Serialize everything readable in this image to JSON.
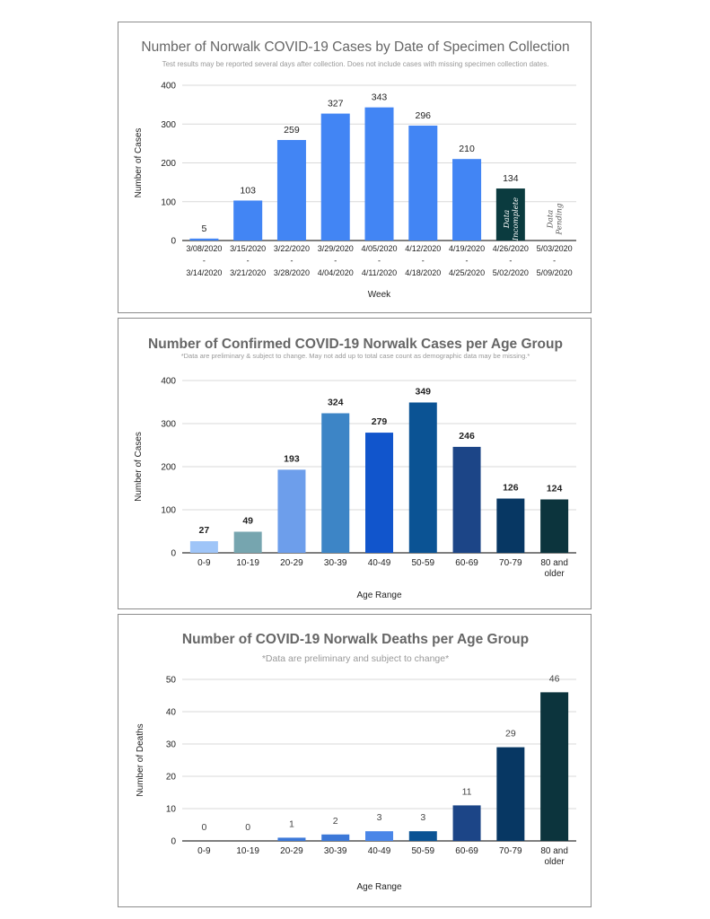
{
  "chart_data": [
    {
      "type": "bar",
      "title": "Number of Norwalk COVID-19 Cases by Date of Specimen Collection",
      "subtitle": "Test results may be reported several days after collection. Does not include cases with missing specimen collection dates.",
      "xlabel": "Week",
      "ylabel": "Number of Cases",
      "ylim": [
        0,
        400
      ],
      "yticks": [
        "0",
        "100",
        "200",
        "300",
        "400"
      ],
      "categories": [
        [
          "3/08/2020",
          "-",
          "3/14/2020"
        ],
        [
          "3/15/2020",
          "-",
          "3/21/2020"
        ],
        [
          "3/22/2020",
          "-",
          "3/28/2020"
        ],
        [
          "3/29/2020",
          "-",
          "4/04/2020"
        ],
        [
          "4/05/2020",
          "-",
          "4/11/2020"
        ],
        [
          "4/12/2020",
          "-",
          "4/18/2020"
        ],
        [
          "4/19/2020",
          "-",
          "4/25/2020"
        ],
        [
          "4/26/2020",
          "-",
          "5/02/2020"
        ],
        [
          "5/03/2020",
          "-",
          "5/09/2020"
        ]
      ],
      "values": [
        5,
        103,
        259,
        327,
        343,
        296,
        210,
        134,
        null
      ],
      "data_labels": [
        "5",
        "103",
        "259",
        "327",
        "343",
        "296",
        "210",
        "134",
        ""
      ],
      "colors": [
        "#4285f4",
        "#4285f4",
        "#4285f4",
        "#4285f4",
        "#4285f4",
        "#4285f4",
        "#4285f4",
        "#0b3b3f",
        "#4285f4"
      ],
      "bar_annotations": [
        {
          "index": 7,
          "lines": [
            "Data",
            "Incomplete"
          ]
        },
        {
          "index": 8,
          "lines": [
            "Data",
            "Pending"
          ]
        }
      ],
      "grid": true
    },
    {
      "type": "bar",
      "title": "Number of Confirmed COVID-19 Norwalk Cases per Age Group",
      "subtitle": "*Data are preliminary & subject to change. May not add up to total case count as demographic data may be missing.*",
      "xlabel": "Age Range",
      "ylabel": "Number of Cases",
      "ylim": [
        0,
        400
      ],
      "yticks": [
        "0",
        "100",
        "200",
        "300",
        "400"
      ],
      "categories": [
        [
          "0-9"
        ],
        [
          "10-19"
        ],
        [
          "20-29"
        ],
        [
          "30-39"
        ],
        [
          "40-49"
        ],
        [
          "50-59"
        ],
        [
          "60-69"
        ],
        [
          "70-79"
        ],
        [
          "80 and",
          "older"
        ]
      ],
      "values": [
        27,
        49,
        193,
        324,
        279,
        349,
        246,
        126,
        124
      ],
      "data_labels": [
        "27",
        "49",
        "193",
        "324",
        "279",
        "349",
        "246",
        "126",
        "124"
      ],
      "colors": [
        "#9fc5f8",
        "#76a5af",
        "#6d9eeb",
        "#3d85c6",
        "#1155cc",
        "#0b5394",
        "#1c4587",
        "#073763",
        "#0c343d"
      ],
      "grid": true
    },
    {
      "type": "bar",
      "title": "Number of COVID-19 Norwalk Deaths per Age Group",
      "subtitle": "*Data are preliminary and subject to change*",
      "xlabel": "Age Range",
      "ylabel": "Number of Deaths",
      "ylim": [
        0,
        50
      ],
      "yticks": [
        "0",
        "10",
        "20",
        "30",
        "40",
        "50"
      ],
      "categories": [
        [
          "0-9"
        ],
        [
          "10-19"
        ],
        [
          "20-29"
        ],
        [
          "30-39"
        ],
        [
          "40-49"
        ],
        [
          "50-59"
        ],
        [
          "60-69"
        ],
        [
          "70-79"
        ],
        [
          "80 and",
          "older"
        ]
      ],
      "values": [
        0,
        0,
        1,
        2,
        3,
        3,
        11,
        29,
        46
      ],
      "data_labels": [
        "0",
        "0",
        "1",
        "2",
        "3",
        "3",
        "11",
        "29",
        "46"
      ],
      "colors": [
        "#4a86e8",
        "#4a86e8",
        "#3c78d8",
        "#3c78d8",
        "#4a86e8",
        "#0b5394",
        "#1c4587",
        "#073763",
        "#0c343d"
      ],
      "grid": true
    }
  ]
}
